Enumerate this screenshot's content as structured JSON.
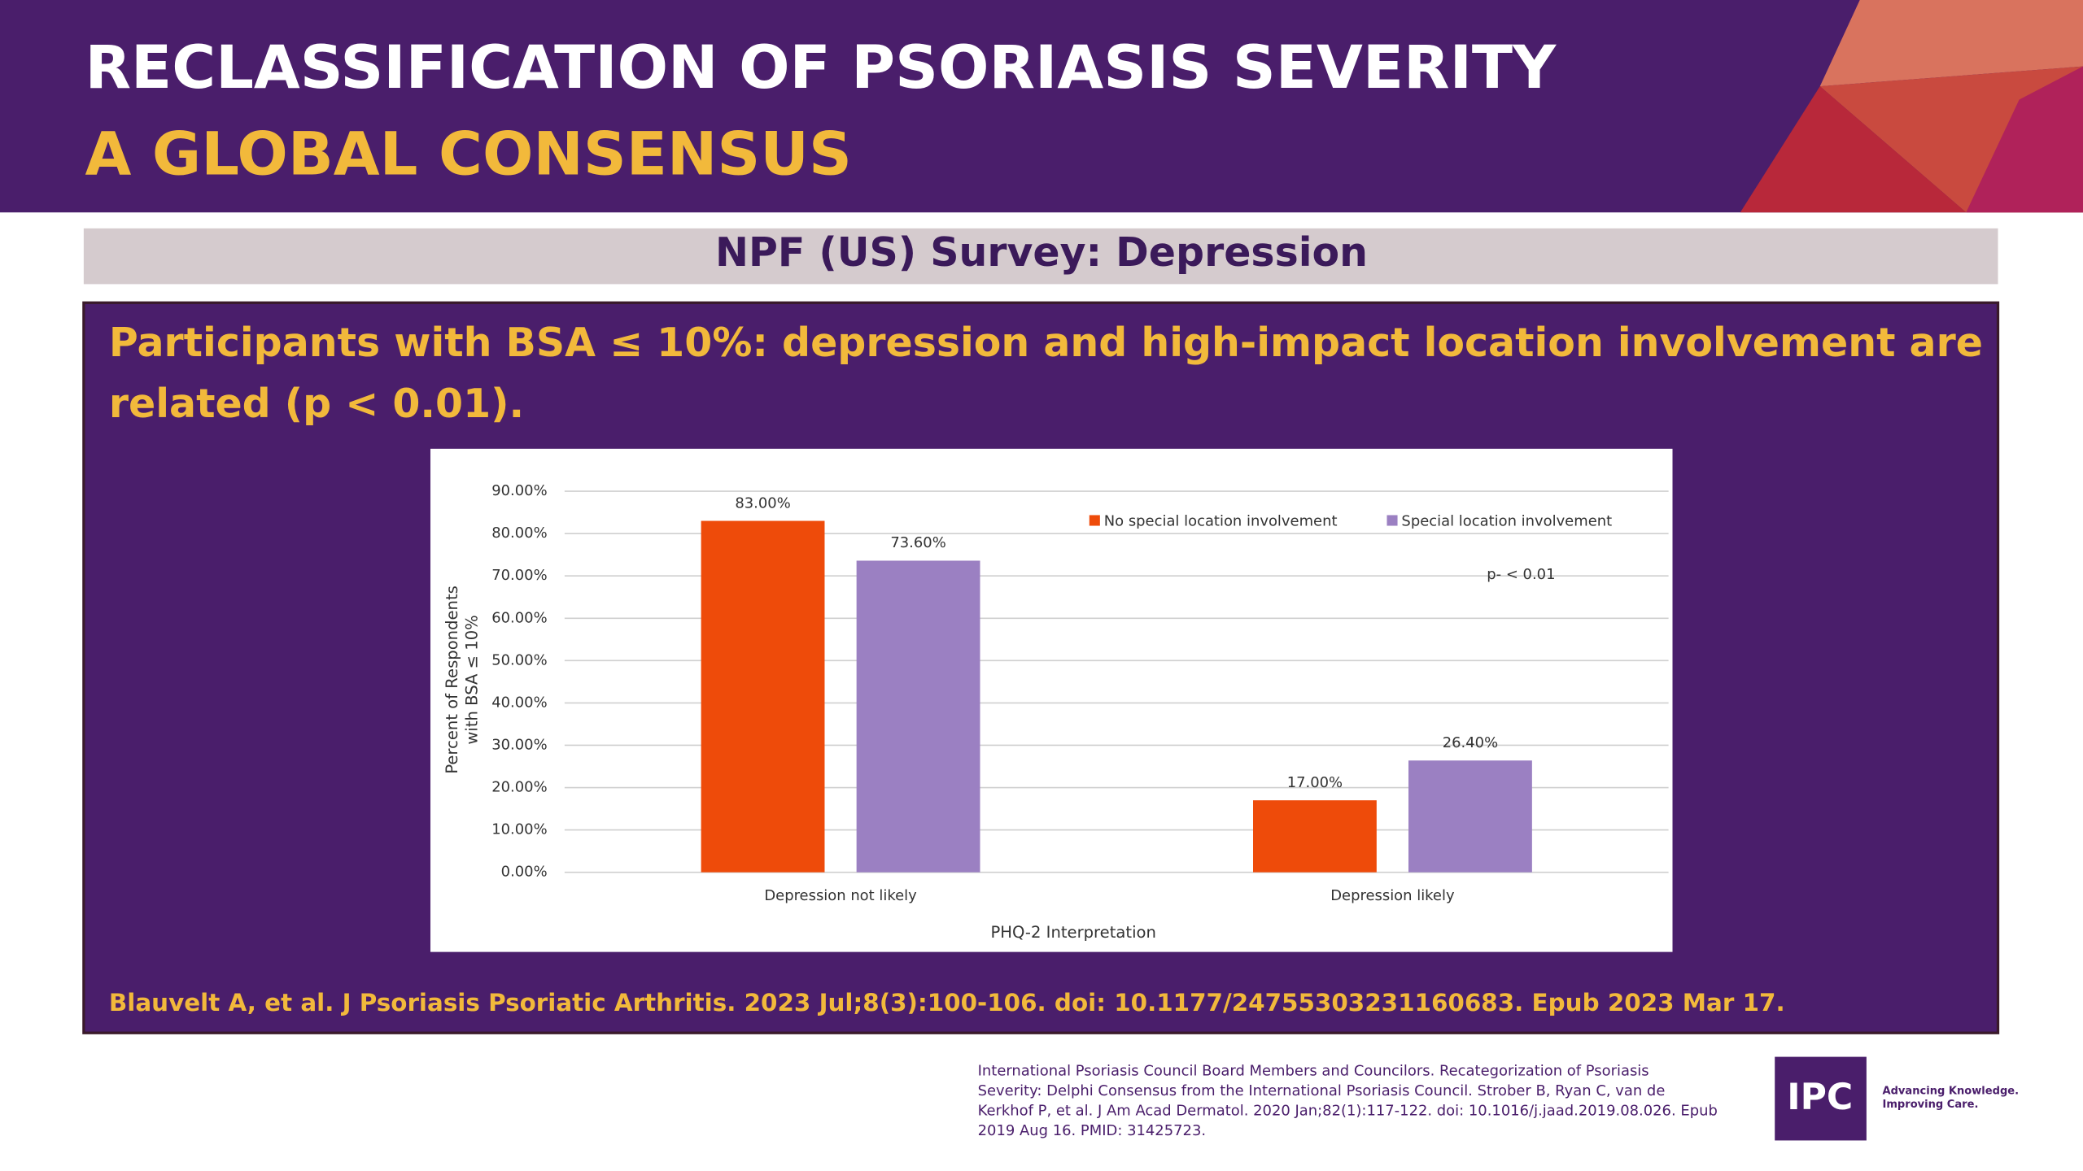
{
  "header": {
    "title": "RECLASSIFICATION OF PSORIASIS SEVERITY",
    "subtitle": "A GLOBAL CONSENSUS"
  },
  "section_title": "NPF (US) Survey: Depression",
  "statement": [
    "Participants with BSA ≤ 10%: depression and high-impact location involvement are",
    "related (p < 0.01)."
  ],
  "source": "Blauvelt A, et al. J Psoriasis Psoriatic Arthritis. 2023 Jul;8(3):100-106. doi: 10.1177/24755303231160683. Epub 2023 Mar 17.",
  "footer": {
    "reference": [
      "International Psoriasis Council Board Members and Councilors. Recategorization of Psoriasis",
      "Severity: Delphi Consensus from the International Psoriasis Council. Strober B, Ryan C, van de",
      "Kerkhof P, et al. J Am Acad Dermatol. 2020 Jan;82(1):117-122. doi: 10.1016/j.jaad.2019.08.026. Epub",
      "2019 Aug 16. PMID: 31425723."
    ],
    "logo": "IPC",
    "tagline": [
      "Advancing Knowledge.",
      "Improving Care."
    ]
  },
  "chart_data": {
    "type": "bar",
    "categories": [
      "Depression not likely",
      "Depression likely"
    ],
    "series": [
      {
        "name": "No special location involvement",
        "color": "#ee4b0a",
        "values": [
          83,
          17
        ],
        "value_labels": [
          "83.00%",
          "17.00%"
        ]
      },
      {
        "name": "Special location involvement",
        "color": "#9b80c2",
        "values": [
          73.6,
          26.4
        ],
        "value_labels": [
          "73.60%",
          "26.40%"
        ]
      }
    ],
    "ylim": [
      0,
      90
    ],
    "yticks": [
      {
        "value": 0,
        "label": "0.00%"
      },
      {
        "value": 10,
        "label": "10.00%"
      },
      {
        "value": 20,
        "label": "20.00%"
      },
      {
        "value": 30,
        "label": "30.00%"
      },
      {
        "value": 40,
        "label": "40.00%"
      },
      {
        "value": 50,
        "label": "50.00%"
      },
      {
        "value": 60,
        "label": "60.00%"
      },
      {
        "value": 70,
        "label": "70.00%"
      },
      {
        "value": 80,
        "label": "80.00%"
      },
      {
        "value": 90,
        "label": "90.00%"
      }
    ],
    "ylabel": [
      "Percent of Respondents",
      "with BSA ≤ 10%"
    ],
    "xlabel": "PHQ-2 Interpretation",
    "annotation": "p- < 0.01",
    "grid": true,
    "legend": "top-right"
  }
}
